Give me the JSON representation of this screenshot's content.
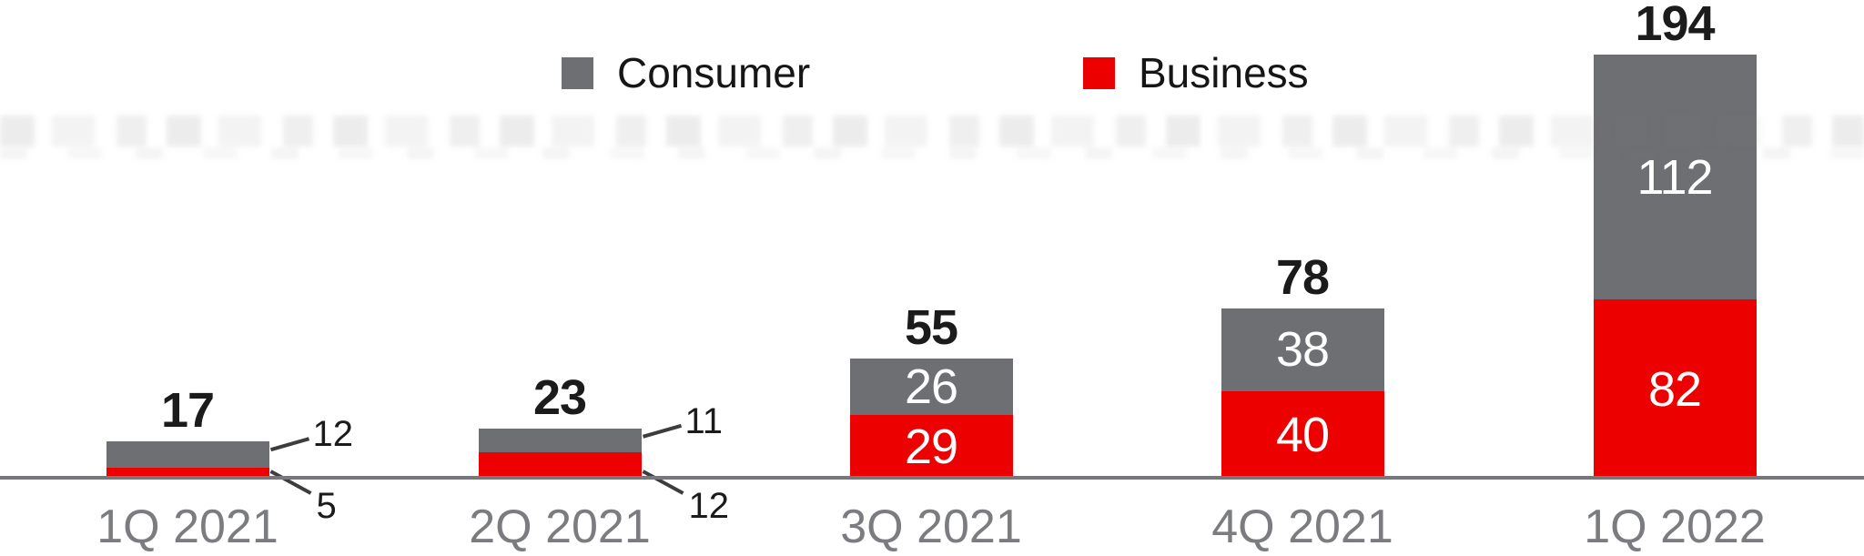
{
  "chart_data": {
    "type": "bar",
    "subtype": "stacked",
    "title": "",
    "categories": [
      "1Q 2021",
      "2Q 2021",
      "3Q 2021",
      "4Q 2021",
      "1Q 2022"
    ],
    "series": [
      {
        "name": "Consumer",
        "color": "#6e6f72",
        "values": [
          12,
          11,
          26,
          38,
          112
        ]
      },
      {
        "name": "Business",
        "color": "#ec0000",
        "values": [
          5,
          12,
          29,
          40,
          82
        ]
      }
    ],
    "totals": [
      17,
      23,
      55,
      78,
      194
    ],
    "value_label_mode": [
      "callout",
      "callout",
      "inside",
      "inside",
      "inside"
    ],
    "legend_position": "top-center",
    "axes": {
      "y_axis_visible": false,
      "x_baseline_visible": true,
      "gridlines": false,
      "ylim": [
        0,
        200
      ]
    },
    "colors": {
      "background": "#ffffff",
      "total_label": "#1b1b1c",
      "category_label": "#7b7c7f",
      "inside_label": "#ffffff",
      "callout_text": "#1b1b1c",
      "callout_line": "#3d3d3d",
      "baseline": "#77787b"
    }
  }
}
